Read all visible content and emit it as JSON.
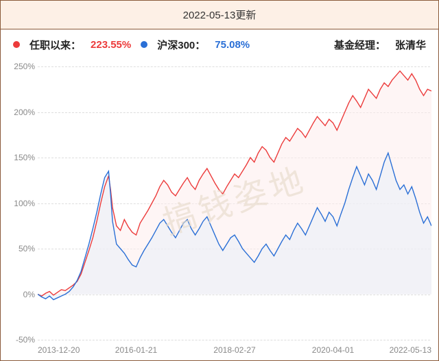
{
  "title": "2022-05-13更新",
  "legend": {
    "series1": {
      "dot_color": "#ec3b3b",
      "label": "任职以来：",
      "value": "223.55%",
      "value_color": "#ec3b3b"
    },
    "series2": {
      "dot_color": "#2a6fd6",
      "label": "沪深300：",
      "value": "75.08%",
      "value_color": "#2a6fd6"
    },
    "manager_label": "基金经理：",
    "manager_name": "张清华"
  },
  "watermark_text": "搞钱姿地",
  "chart": {
    "type": "line",
    "xlim": [
      0,
      100
    ],
    "ylim": [
      -50,
      250
    ],
    "ytick_step": 50,
    "yticks": [
      -50,
      0,
      50,
      100,
      150,
      200,
      250
    ],
    "ytick_labels": [
      "-50%",
      "0%",
      "50%",
      "100%",
      "150%",
      "200%",
      "250%"
    ],
    "xticks": [
      0,
      25,
      50,
      75,
      100
    ],
    "xtick_labels": [
      "2013-12-20",
      "2016-01-21",
      "2018-02-27",
      "2020-04-01",
      "2022-05-13"
    ],
    "grid_color": "#ddd",
    "background_color": "#ffffff",
    "axis_color": "#888",
    "tick_fontsize": 12,
    "series": [
      {
        "name": "任职以来",
        "color": "#ec3b3b",
        "fill_color": "#fdecec",
        "fill_opacity": 0.55,
        "line_width": 1.4,
        "data": [
          [
            0,
            0
          ],
          [
            1,
            -2
          ],
          [
            2,
            1
          ],
          [
            3,
            3
          ],
          [
            4,
            -1
          ],
          [
            5,
            2
          ],
          [
            6,
            5
          ],
          [
            7,
            4
          ],
          [
            8,
            7
          ],
          [
            9,
            10
          ],
          [
            10,
            14
          ],
          [
            11,
            22
          ],
          [
            12,
            35
          ],
          [
            13,
            48
          ],
          [
            14,
            62
          ],
          [
            15,
            80
          ],
          [
            16,
            100
          ],
          [
            17,
            118
          ],
          [
            18,
            130
          ],
          [
            18.5,
            115
          ],
          [
            19,
            95
          ],
          [
            20,
            75
          ],
          [
            21,
            70
          ],
          [
            22,
            82
          ],
          [
            23,
            74
          ],
          [
            24,
            68
          ],
          [
            25,
            65
          ],
          [
            26,
            78
          ],
          [
            27,
            85
          ],
          [
            28,
            92
          ],
          [
            29,
            100
          ],
          [
            30,
            108
          ],
          [
            31,
            118
          ],
          [
            32,
            125
          ],
          [
            33,
            120
          ],
          [
            34,
            112
          ],
          [
            35,
            108
          ],
          [
            36,
            115
          ],
          [
            37,
            122
          ],
          [
            38,
            128
          ],
          [
            39,
            120
          ],
          [
            40,
            115
          ],
          [
            41,
            125
          ],
          [
            42,
            132
          ],
          [
            43,
            138
          ],
          [
            44,
            130
          ],
          [
            45,
            122
          ],
          [
            46,
            115
          ],
          [
            47,
            110
          ],
          [
            48,
            118
          ],
          [
            49,
            125
          ],
          [
            50,
            132
          ],
          [
            51,
            128
          ],
          [
            52,
            135
          ],
          [
            53,
            142
          ],
          [
            54,
            150
          ],
          [
            55,
            145
          ],
          [
            56,
            155
          ],
          [
            57,
            162
          ],
          [
            58,
            158
          ],
          [
            59,
            150
          ],
          [
            60,
            145
          ],
          [
            61,
            155
          ],
          [
            62,
            165
          ],
          [
            63,
            172
          ],
          [
            64,
            168
          ],
          [
            65,
            175
          ],
          [
            66,
            182
          ],
          [
            67,
            178
          ],
          [
            68,
            172
          ],
          [
            69,
            180
          ],
          [
            70,
            188
          ],
          [
            71,
            195
          ],
          [
            72,
            190
          ],
          [
            73,
            185
          ],
          [
            74,
            192
          ],
          [
            75,
            188
          ],
          [
            76,
            180
          ],
          [
            77,
            190
          ],
          [
            78,
            200
          ],
          [
            79,
            210
          ],
          [
            80,
            218
          ],
          [
            81,
            212
          ],
          [
            82,
            205
          ],
          [
            83,
            215
          ],
          [
            84,
            225
          ],
          [
            85,
            220
          ],
          [
            86,
            215
          ],
          [
            87,
            225
          ],
          [
            88,
            232
          ],
          [
            89,
            228
          ],
          [
            90,
            235
          ],
          [
            91,
            240
          ],
          [
            92,
            245
          ],
          [
            93,
            240
          ],
          [
            94,
            235
          ],
          [
            95,
            242
          ],
          [
            96,
            235
          ],
          [
            97,
            225
          ],
          [
            98,
            218
          ],
          [
            99,
            225
          ],
          [
            100,
            223
          ]
        ]
      },
      {
        "name": "沪深300",
        "color": "#2a6fd6",
        "fill_color": "#e8eef8",
        "fill_opacity": 0.55,
        "line_width": 1.4,
        "data": [
          [
            0,
            0
          ],
          [
            1,
            -3
          ],
          [
            2,
            -5
          ],
          [
            3,
            -2
          ],
          [
            4,
            -6
          ],
          [
            5,
            -4
          ],
          [
            6,
            -2
          ],
          [
            7,
            0
          ],
          [
            8,
            3
          ],
          [
            9,
            8
          ],
          [
            10,
            15
          ],
          [
            11,
            25
          ],
          [
            12,
            40
          ],
          [
            13,
            55
          ],
          [
            14,
            72
          ],
          [
            15,
            90
          ],
          [
            16,
            110
          ],
          [
            17,
            128
          ],
          [
            18,
            135
          ],
          [
            18.5,
            110
          ],
          [
            19,
            80
          ],
          [
            20,
            55
          ],
          [
            21,
            50
          ],
          [
            22,
            45
          ],
          [
            23,
            38
          ],
          [
            24,
            32
          ],
          [
            25,
            30
          ],
          [
            26,
            40
          ],
          [
            27,
            48
          ],
          [
            28,
            55
          ],
          [
            29,
            62
          ],
          [
            30,
            70
          ],
          [
            31,
            78
          ],
          [
            32,
            82
          ],
          [
            33,
            75
          ],
          [
            34,
            68
          ],
          [
            35,
            62
          ],
          [
            36,
            70
          ],
          [
            37,
            78
          ],
          [
            38,
            82
          ],
          [
            39,
            72
          ],
          [
            40,
            65
          ],
          [
            41,
            72
          ],
          [
            42,
            80
          ],
          [
            43,
            85
          ],
          [
            44,
            75
          ],
          [
            45,
            65
          ],
          [
            46,
            55
          ],
          [
            47,
            48
          ],
          [
            48,
            55
          ],
          [
            49,
            62
          ],
          [
            50,
            65
          ],
          [
            51,
            58
          ],
          [
            52,
            50
          ],
          [
            53,
            45
          ],
          [
            54,
            40
          ],
          [
            55,
            35
          ],
          [
            56,
            42
          ],
          [
            57,
            50
          ],
          [
            58,
            55
          ],
          [
            59,
            48
          ],
          [
            60,
            42
          ],
          [
            61,
            50
          ],
          [
            62,
            58
          ],
          [
            63,
            65
          ],
          [
            64,
            60
          ],
          [
            65,
            70
          ],
          [
            66,
            78
          ],
          [
            67,
            72
          ],
          [
            68,
            65
          ],
          [
            69,
            75
          ],
          [
            70,
            85
          ],
          [
            71,
            95
          ],
          [
            72,
            88
          ],
          [
            73,
            80
          ],
          [
            74,
            90
          ],
          [
            75,
            85
          ],
          [
            76,
            75
          ],
          [
            77,
            88
          ],
          [
            78,
            100
          ],
          [
            79,
            115
          ],
          [
            80,
            128
          ],
          [
            81,
            140
          ],
          [
            82,
            130
          ],
          [
            83,
            120
          ],
          [
            84,
            132
          ],
          [
            85,
            125
          ],
          [
            86,
            115
          ],
          [
            87,
            130
          ],
          [
            88,
            145
          ],
          [
            89,
            155
          ],
          [
            90,
            140
          ],
          [
            91,
            125
          ],
          [
            92,
            115
          ],
          [
            93,
            120
          ],
          [
            94,
            110
          ],
          [
            95,
            118
          ],
          [
            96,
            105
          ],
          [
            97,
            90
          ],
          [
            98,
            78
          ],
          [
            99,
            85
          ],
          [
            100,
            75
          ]
        ]
      }
    ]
  }
}
